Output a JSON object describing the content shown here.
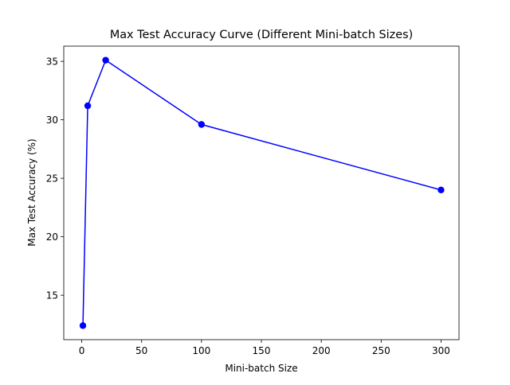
{
  "chart_data": {
    "type": "line",
    "title": "Max Test Accuracy Curve (Different Mini-batch Sizes)",
    "xlabel": "Mini-batch Size",
    "ylabel": "Max Test Accuracy (%)",
    "xlim": [
      -15,
      315
    ],
    "ylim": [
      11.2,
      36.3
    ],
    "xticks": [
      0,
      50,
      100,
      150,
      200,
      250,
      300
    ],
    "yticks": [
      15,
      20,
      25,
      30,
      35
    ],
    "grid": false,
    "series": [
      {
        "x": [
          1,
          5,
          20,
          100,
          300
        ],
        "y": [
          12.4,
          31.2,
          35.1,
          29.6,
          24.0
        ],
        "color": "#0000ff",
        "marker": "circle"
      }
    ]
  }
}
